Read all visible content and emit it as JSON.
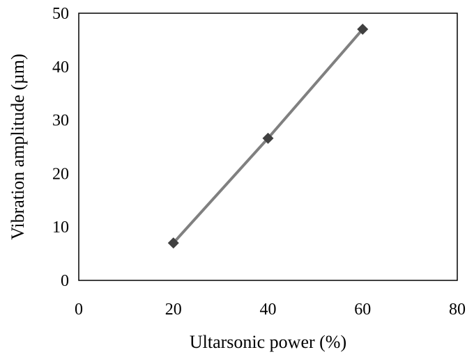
{
  "chart_data": {
    "type": "line",
    "title": "",
    "xlabel": "Ultarsonic power (%)",
    "ylabel": "Vibration amplitude (µm)",
    "xlim": [
      0,
      80
    ],
    "ylim": [
      0,
      50
    ],
    "x_ticks": [
      0,
      20,
      40,
      60,
      80
    ],
    "y_ticks": [
      0,
      10,
      20,
      30,
      40,
      50
    ],
    "grid": false,
    "legend": "none",
    "series": [
      {
        "x": [
          20,
          40,
          60
        ],
        "y": [
          7,
          26.6,
          47
        ],
        "marker": "diamond",
        "line_color": "#808080",
        "marker_color": "#404040"
      }
    ]
  }
}
